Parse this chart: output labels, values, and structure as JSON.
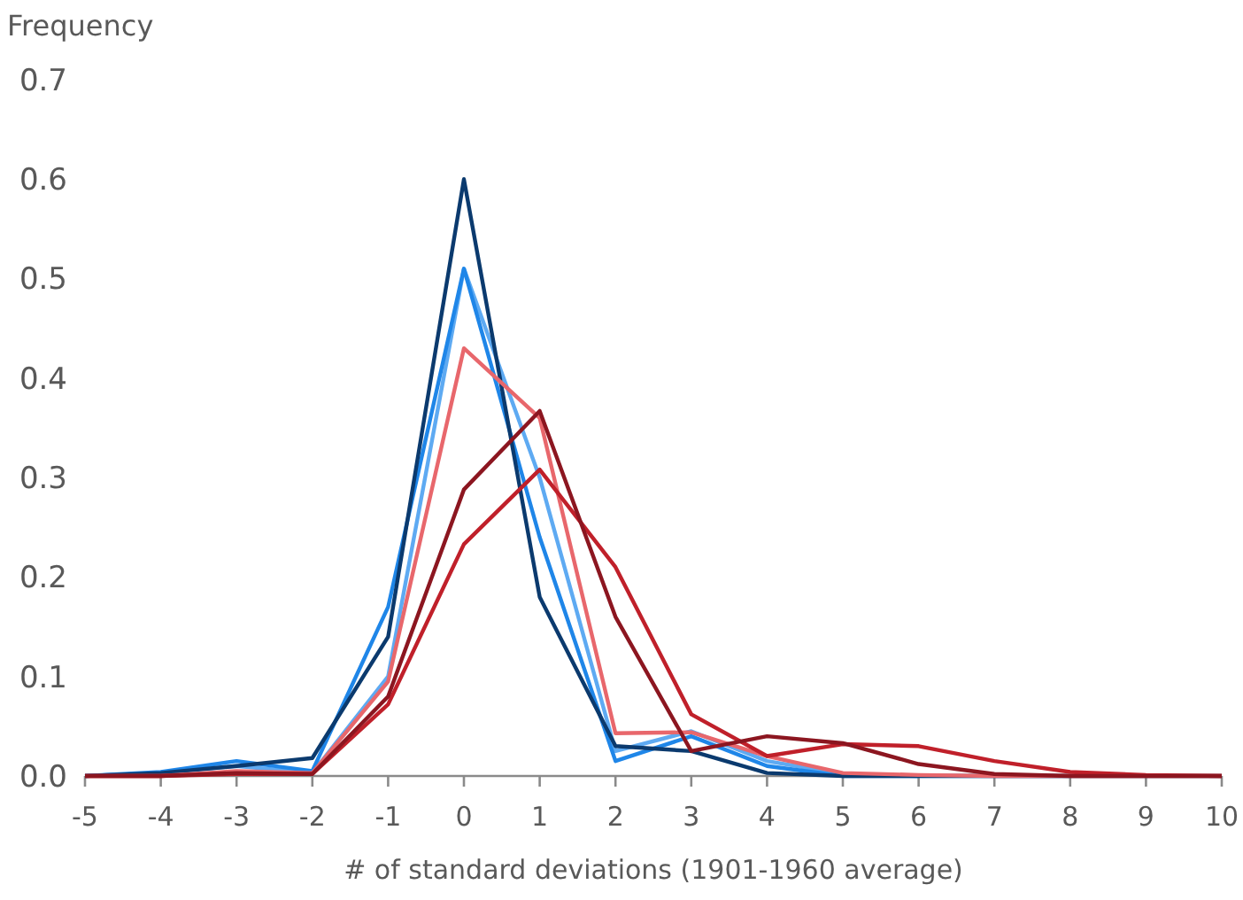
{
  "chart_data": {
    "type": "line",
    "ylabel": "Frequency",
    "xlabel": "# of standard deviations (1901-1960 average)",
    "x": [
      -5,
      -4,
      -3,
      -2,
      -1,
      0,
      1,
      2,
      3,
      4,
      5,
      6,
      7,
      8,
      9,
      10
    ],
    "xlim": [
      -5,
      10
    ],
    "xticks": [
      -5,
      -4,
      -3,
      -2,
      -1,
      0,
      1,
      2,
      3,
      4,
      5,
      6,
      7,
      8,
      9,
      10
    ],
    "ylim": [
      0,
      0.7
    ],
    "yticks": [
      {
        "value": 0,
        "label": "0.0"
      },
      0.1,
      0.2,
      0.3,
      0.4,
      0.5,
      0.6,
      0.7
    ],
    "grid": false,
    "marker": "none",
    "line_style": "solid",
    "series": [
      {
        "color": "#5eaaf2",
        "values": [
          0,
          0.003,
          0.01,
          0.003,
          0.1,
          0.51,
          0.3,
          0.025,
          0.045,
          0.015,
          0.002,
          0,
          0,
          0,
          null,
          null
        ]
      },
      {
        "color": "#1f86e8",
        "values": [
          0,
          0.004,
          0.015,
          0.005,
          0.17,
          0.51,
          0.24,
          0.015,
          0.04,
          0.01,
          0,
          0,
          null,
          null,
          null,
          null
        ]
      },
      {
        "color": "#0b3a6e",
        "values": [
          0,
          0.003,
          0.01,
          0.018,
          0.14,
          0.6,
          0.18,
          0.03,
          0.025,
          0.003,
          0,
          0,
          0,
          0,
          0,
          0
        ]
      },
      {
        "color": "#e8676c",
        "values": [
          0,
          0,
          0.005,
          0.003,
          0.095,
          0.43,
          0.36,
          0.043,
          0.044,
          0.02,
          0.003,
          0.001,
          0,
          0,
          0,
          0
        ]
      },
      {
        "color": "#c0202a",
        "values": [
          0,
          0,
          0.002,
          0.002,
          0.072,
          0.233,
          0.308,
          0.21,
          0.062,
          0.02,
          0.032,
          0.03,
          0.015,
          0.004,
          0.001,
          0
        ]
      },
      {
        "color": "#8c1620",
        "values": [
          0,
          0,
          0.003,
          0.002,
          0.08,
          0.288,
          0.367,
          0.16,
          0.025,
          0.04,
          0.033,
          0.012,
          0.002,
          0,
          0,
          0
        ]
      }
    ]
  }
}
